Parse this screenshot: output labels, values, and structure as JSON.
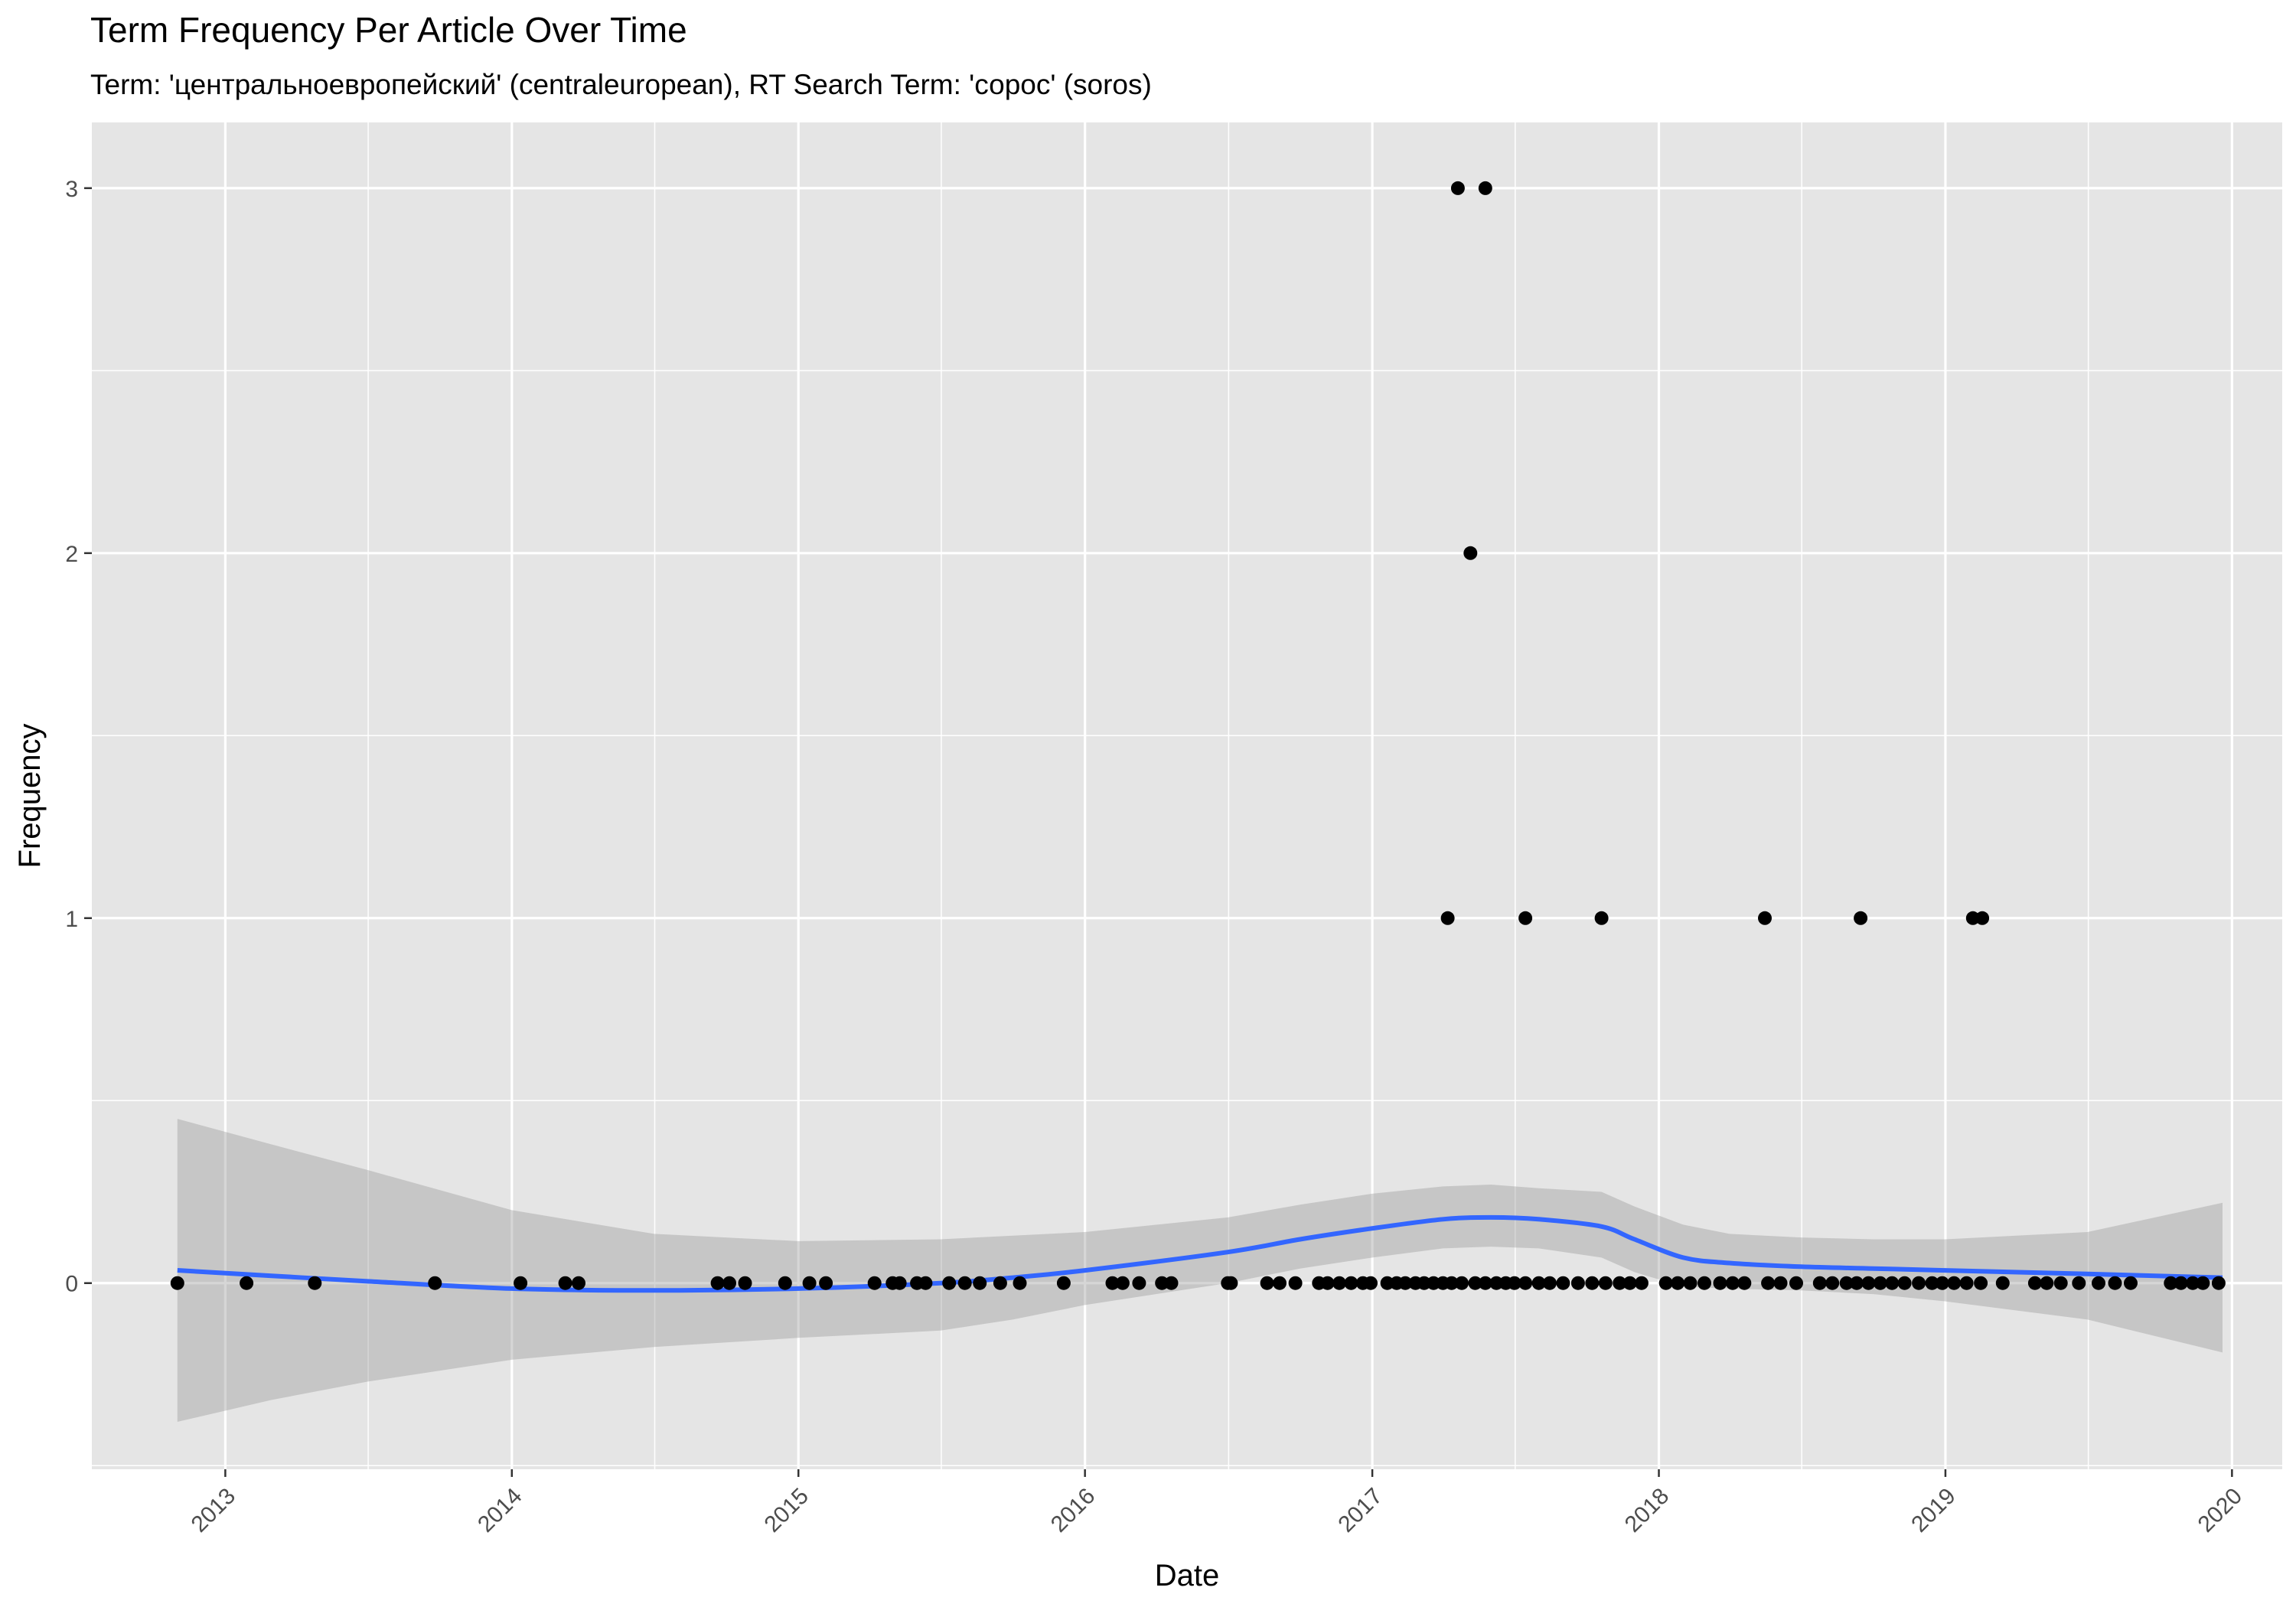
{
  "chart_data": {
    "type": "scatter",
    "title": "Term Frequency Per Article Over Time",
    "subtitle": "Term: 'центральноевропейский' (centraleuropean), RT Search Term: 'сорос' (soros)",
    "xlabel": "Date",
    "ylabel": "Frequency",
    "x_axis_type": "date",
    "xlim": [
      "2012-07-15",
      "2020-03-05"
    ],
    "ylim": [
      -0.51,
      3.18
    ],
    "x_ticks": [
      "2013",
      "2014",
      "2015",
      "2016",
      "2017",
      "2018",
      "2019",
      "2020"
    ],
    "y_ticks": [
      "0",
      "1",
      "2",
      "3"
    ],
    "grid": true,
    "legend": "none",
    "colors": {
      "panel_background": "#e5e5e5",
      "grid": "#ffffff",
      "points": "#000000",
      "smooth_line": "#3366ff",
      "confidence_band": "#bfbfbf"
    },
    "series": [
      {
        "type": "points",
        "points": [
          [
            "2012-11-01",
            0
          ],
          [
            "2013-01-28",
            0
          ],
          [
            "2013-04-25",
            0
          ],
          [
            "2013-09-25",
            0
          ],
          [
            "2014-01-12",
            0
          ],
          [
            "2014-03-10",
            0
          ],
          [
            "2014-03-27",
            0
          ],
          [
            "2014-09-20",
            0
          ],
          [
            "2014-10-05",
            0
          ],
          [
            "2014-10-25",
            0
          ],
          [
            "2014-12-15",
            0
          ],
          [
            "2015-01-15",
            0
          ],
          [
            "2015-02-05",
            0
          ],
          [
            "2015-04-08",
            0
          ],
          [
            "2015-05-01",
            0
          ],
          [
            "2015-05-10",
            0
          ],
          [
            "2015-06-01",
            0
          ],
          [
            "2015-06-12",
            0
          ],
          [
            "2015-07-12",
            0
          ],
          [
            "2015-08-01",
            0
          ],
          [
            "2015-08-20",
            0
          ],
          [
            "2015-09-15",
            0
          ],
          [
            "2015-10-10",
            0
          ],
          [
            "2015-12-05",
            0
          ],
          [
            "2016-02-05",
            0
          ],
          [
            "2016-02-18",
            0
          ],
          [
            "2016-03-10",
            0
          ],
          [
            "2016-04-08",
            0
          ],
          [
            "2016-04-20",
            0
          ],
          [
            "2016-07-01",
            0
          ],
          [
            "2016-07-05",
            0
          ],
          [
            "2016-08-20",
            0
          ],
          [
            "2016-09-05",
            0
          ],
          [
            "2016-09-25",
            0
          ],
          [
            "2016-10-25",
            0
          ],
          [
            "2016-11-05",
            0
          ],
          [
            "2016-11-20",
            0
          ],
          [
            "2016-12-05",
            0
          ],
          [
            "2016-12-20",
            0
          ],
          [
            "2016-12-30",
            0
          ],
          [
            "2017-01-20",
            0
          ],
          [
            "2017-02-01",
            0
          ],
          [
            "2017-02-12",
            0
          ],
          [
            "2017-02-25",
            0
          ],
          [
            "2017-03-08",
            0
          ],
          [
            "2017-03-20",
            0
          ],
          [
            "2017-04-01",
            0
          ],
          [
            "2017-04-12",
            0
          ],
          [
            "2017-04-25",
            0
          ],
          [
            "2017-05-12",
            0
          ],
          [
            "2017-05-25",
            0
          ],
          [
            "2017-06-08",
            0
          ],
          [
            "2017-06-20",
            0
          ],
          [
            "2017-07-01",
            0
          ],
          [
            "2017-07-15",
            0
          ],
          [
            "2017-08-01",
            0
          ],
          [
            "2017-08-15",
            0
          ],
          [
            "2017-09-01",
            0
          ],
          [
            "2017-09-20",
            0
          ],
          [
            "2017-10-08",
            0
          ],
          [
            "2017-10-25",
            0
          ],
          [
            "2017-11-12",
            0
          ],
          [
            "2017-11-25",
            0
          ],
          [
            "2017-12-10",
            0
          ],
          [
            "2018-01-10",
            0
          ],
          [
            "2018-01-25",
            0
          ],
          [
            "2018-02-10",
            0
          ],
          [
            "2018-02-28",
            0
          ],
          [
            "2018-03-20",
            0
          ],
          [
            "2018-04-05",
            0
          ],
          [
            "2018-04-20",
            0
          ],
          [
            "2018-05-20",
            0
          ],
          [
            "2018-06-05",
            0
          ],
          [
            "2018-06-25",
            0
          ],
          [
            "2018-07-25",
            0
          ],
          [
            "2018-08-10",
            0
          ],
          [
            "2018-08-28",
            0
          ],
          [
            "2018-09-10",
            0
          ],
          [
            "2018-09-25",
            0
          ],
          [
            "2018-10-10",
            0
          ],
          [
            "2018-10-25",
            0
          ],
          [
            "2018-11-10",
            0
          ],
          [
            "2018-11-28",
            0
          ],
          [
            "2018-12-15",
            0
          ],
          [
            "2018-12-28",
            0
          ],
          [
            "2019-01-12",
            0
          ],
          [
            "2019-01-28",
            0
          ],
          [
            "2019-02-15",
            0
          ],
          [
            "2019-03-15",
            0
          ],
          [
            "2019-04-25",
            0
          ],
          [
            "2019-05-10",
            0
          ],
          [
            "2019-05-28",
            0
          ],
          [
            "2019-06-20",
            0
          ],
          [
            "2019-07-15",
            0
          ],
          [
            "2019-08-05",
            0
          ],
          [
            "2019-08-25",
            0
          ],
          [
            "2019-10-15",
            0
          ],
          [
            "2019-10-28",
            0
          ],
          [
            "2019-11-12",
            0
          ],
          [
            "2019-11-25",
            0
          ],
          [
            "2019-12-15",
            0
          ],
          [
            "2017-04-07",
            1
          ],
          [
            "2017-07-15",
            1
          ],
          [
            "2017-10-20",
            1
          ],
          [
            "2018-05-16",
            1
          ],
          [
            "2018-09-15",
            1
          ],
          [
            "2019-02-05",
            1
          ],
          [
            "2019-02-17",
            1
          ],
          [
            "2017-05-06",
            2
          ],
          [
            "2017-04-20",
            3
          ],
          [
            "2017-05-25",
            3
          ]
        ]
      },
      {
        "type": "smooth",
        "line": [
          [
            "2012-11-01",
            0.035
          ],
          [
            "2013-03-01",
            0.02
          ],
          [
            "2013-07-01",
            0.005
          ],
          [
            "2014-01-01",
            -0.015
          ],
          [
            "2014-07-01",
            -0.02
          ],
          [
            "2015-01-01",
            -0.015
          ],
          [
            "2015-07-01",
            0.0
          ],
          [
            "2015-10-01",
            0.015
          ],
          [
            "2016-01-01",
            0.035
          ],
          [
            "2016-07-01",
            0.085
          ],
          [
            "2016-10-01",
            0.12
          ],
          [
            "2017-01-01",
            0.15
          ],
          [
            "2017-04-01",
            0.175
          ],
          [
            "2017-06-01",
            0.18
          ],
          [
            "2017-08-01",
            0.175
          ],
          [
            "2017-10-20",
            0.155
          ],
          [
            "2017-12-01",
            0.12
          ],
          [
            "2018-02-01",
            0.07
          ],
          [
            "2018-04-01",
            0.055
          ],
          [
            "2018-07-01",
            0.045
          ],
          [
            "2018-10-01",
            0.04
          ],
          [
            "2019-01-01",
            0.035
          ],
          [
            "2019-07-01",
            0.025
          ],
          [
            "2019-12-20",
            0.015
          ]
        ],
        "band": [
          [
            "2012-11-01",
            -0.38,
            0.45
          ],
          [
            "2013-03-01",
            -0.32,
            0.38
          ],
          [
            "2013-07-01",
            -0.27,
            0.31
          ],
          [
            "2014-01-01",
            -0.21,
            0.2
          ],
          [
            "2014-07-01",
            -0.175,
            0.135
          ],
          [
            "2015-01-01",
            -0.15,
            0.115
          ],
          [
            "2015-07-01",
            -0.13,
            0.12
          ],
          [
            "2015-10-01",
            -0.1,
            0.13
          ],
          [
            "2016-01-01",
            -0.06,
            0.14
          ],
          [
            "2016-07-01",
            0.0,
            0.18
          ],
          [
            "2016-10-01",
            0.04,
            0.215
          ],
          [
            "2017-01-01",
            0.07,
            0.245
          ],
          [
            "2017-04-01",
            0.095,
            0.265
          ],
          [
            "2017-06-01",
            0.1,
            0.27
          ],
          [
            "2017-08-01",
            0.095,
            0.26
          ],
          [
            "2017-10-20",
            0.07,
            0.25
          ],
          [
            "2017-12-01",
            0.03,
            0.21
          ],
          [
            "2018-02-01",
            -0.01,
            0.16
          ],
          [
            "2018-04-01",
            -0.015,
            0.135
          ],
          [
            "2018-07-01",
            -0.02,
            0.125
          ],
          [
            "2018-10-01",
            -0.03,
            0.12
          ],
          [
            "2019-01-01",
            -0.05,
            0.12
          ],
          [
            "2019-07-01",
            -0.1,
            0.14
          ],
          [
            "2019-12-20",
            -0.19,
            0.22
          ]
        ]
      }
    ]
  }
}
